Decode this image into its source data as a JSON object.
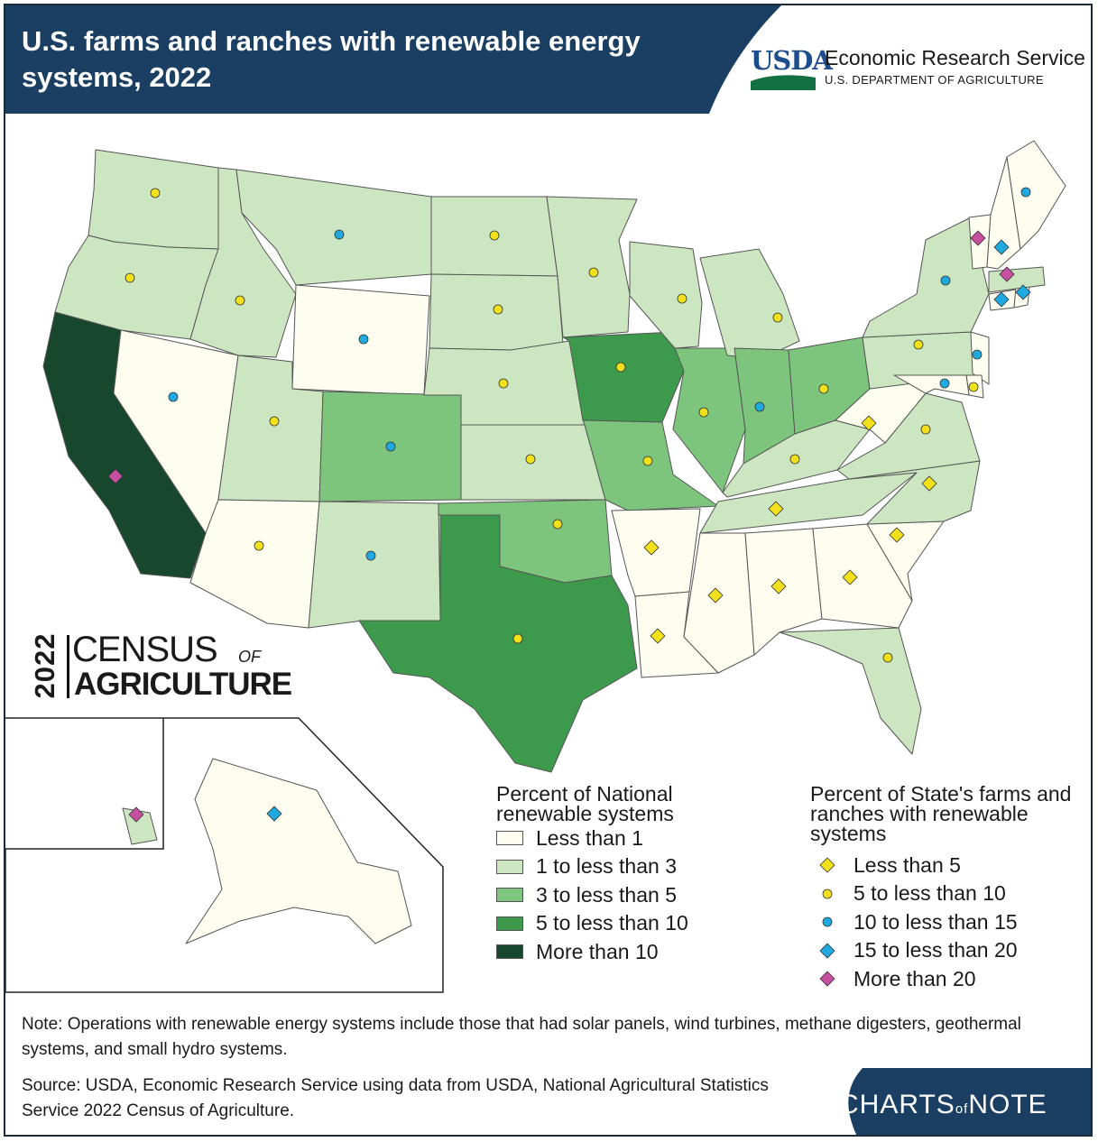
{
  "header": {
    "title": "U.S. farms and ranches with renewable energy systems, 2022",
    "agency_logo_text": "USDA",
    "agency_name": "Economic Research Service",
    "department": "U.S. DEPARTMENT OF AGRICULTURE",
    "color": "#1b3f62"
  },
  "census_logo": {
    "year": "2022",
    "word1": "CENSUS",
    "of": "OF",
    "word2": "AGRICULTURE"
  },
  "legend_fill": {
    "title": "Percent of National renewable systems",
    "items": [
      {
        "label": "Less than 1",
        "color": "#fdfdf0"
      },
      {
        "label": "1 to less than 3",
        "color": "#cde6c2"
      },
      {
        "label": "3 to less than 5",
        "color": "#7dc57d"
      },
      {
        "label": "5 to less than 10",
        "color": "#3d9a4c"
      },
      {
        "label": "More than 10",
        "color": "#17472d"
      }
    ]
  },
  "legend_marker": {
    "title": "Percent of State's farms and ranches with renewable systems",
    "items": [
      {
        "label": "Less than 5",
        "shape": "diamond",
        "color": "#f2e01a"
      },
      {
        "label": "5 to less than 10",
        "shape": "circle",
        "color": "#f2e01a"
      },
      {
        "label": "10 to less than 15",
        "shape": "circle",
        "color": "#1ea9e1"
      },
      {
        "label": "15 to less than 20",
        "shape": "diamond",
        "color": "#1ea9e1"
      },
      {
        "label": "More than 20",
        "shape": "diamond",
        "color": "#c74fa2"
      }
    ]
  },
  "states": [
    {
      "name": "Washington",
      "national": 1,
      "state": 1
    },
    {
      "name": "Oregon",
      "national": 1,
      "state": 1
    },
    {
      "name": "California",
      "national": 4,
      "state": 4
    },
    {
      "name": "Nevada",
      "national": 0,
      "state": 2
    },
    {
      "name": "Idaho",
      "national": 1,
      "state": 1
    },
    {
      "name": "Montana",
      "national": 1,
      "state": 2
    },
    {
      "name": "Wyoming",
      "national": 0,
      "state": 2
    },
    {
      "name": "Utah",
      "national": 1,
      "state": 1
    },
    {
      "name": "Colorado",
      "national": 2,
      "state": 2
    },
    {
      "name": "Arizona",
      "national": 0,
      "state": 1
    },
    {
      "name": "New Mexico",
      "national": 1,
      "state": 2
    },
    {
      "name": "North Dakota",
      "national": 1,
      "state": 1
    },
    {
      "name": "South Dakota",
      "national": 1,
      "state": 1
    },
    {
      "name": "Nebraska",
      "national": 1,
      "state": 1
    },
    {
      "name": "Kansas",
      "national": 1,
      "state": 1
    },
    {
      "name": "Oklahoma",
      "national": 2,
      "state": 1
    },
    {
      "name": "Texas",
      "national": 3,
      "state": 1
    },
    {
      "name": "Minnesota",
      "national": 1,
      "state": 1
    },
    {
      "name": "Iowa",
      "national": 3,
      "state": 1
    },
    {
      "name": "Missouri",
      "national": 2,
      "state": 1
    },
    {
      "name": "Arkansas",
      "national": 0,
      "state": 0
    },
    {
      "name": "Louisiana",
      "national": 0,
      "state": 0
    },
    {
      "name": "Wisconsin",
      "national": 1,
      "state": 1
    },
    {
      "name": "Illinois",
      "national": 2,
      "state": 1
    },
    {
      "name": "Michigan",
      "national": 1,
      "state": 1
    },
    {
      "name": "Indiana",
      "national": 2,
      "state": 2
    },
    {
      "name": "Ohio",
      "national": 2,
      "state": 1
    },
    {
      "name": "Kentucky",
      "national": 1,
      "state": 1
    },
    {
      "name": "Tennessee",
      "national": 1,
      "state": 0
    },
    {
      "name": "Mississippi",
      "national": 0,
      "state": 0
    },
    {
      "name": "Alabama",
      "national": 0,
      "state": 0
    },
    {
      "name": "Georgia",
      "national": 0,
      "state": 0
    },
    {
      "name": "Florida",
      "national": 1,
      "state": 1
    },
    {
      "name": "South Carolina",
      "national": 0,
      "state": 0
    },
    {
      "name": "North Carolina",
      "national": 1,
      "state": 0
    },
    {
      "name": "Virginia",
      "national": 1,
      "state": 1
    },
    {
      "name": "West Virginia",
      "national": 0,
      "state": 0
    },
    {
      "name": "Pennsylvania",
      "national": 1,
      "state": 1
    },
    {
      "name": "New York",
      "national": 1,
      "state": 2
    },
    {
      "name": "New Jersey",
      "national": 0,
      "state": 2
    },
    {
      "name": "Delaware",
      "national": 0,
      "state": 1
    },
    {
      "name": "Maryland",
      "national": 0,
      "state": 2
    },
    {
      "name": "Connecticut",
      "national": 0,
      "state": 3
    },
    {
      "name": "Rhode Island",
      "national": 0,
      "state": 3
    },
    {
      "name": "Massachusetts",
      "national": 1,
      "state": 4
    },
    {
      "name": "Vermont",
      "national": 0,
      "state": 4
    },
    {
      "name": "New Hampshire",
      "national": 0,
      "state": 3
    },
    {
      "name": "Maine",
      "national": 0,
      "state": 2
    },
    {
      "name": "Alaska",
      "national": 0,
      "state": 3
    },
    {
      "name": "Hawaii",
      "national": 1,
      "state": 4
    }
  ],
  "note": "Note: Operations with renewable energy systems include those that had solar panels, wind turbines, methane digesters, geothermal systems, and small hydro systems.",
  "source": "Source: USDA, Economic Research Service using data from USDA, National Agricultural Statistics Service 2022 Census of Agriculture.",
  "footer_brand": {
    "a": "CHARTS",
    "of": "of",
    "b": "NOTE"
  }
}
